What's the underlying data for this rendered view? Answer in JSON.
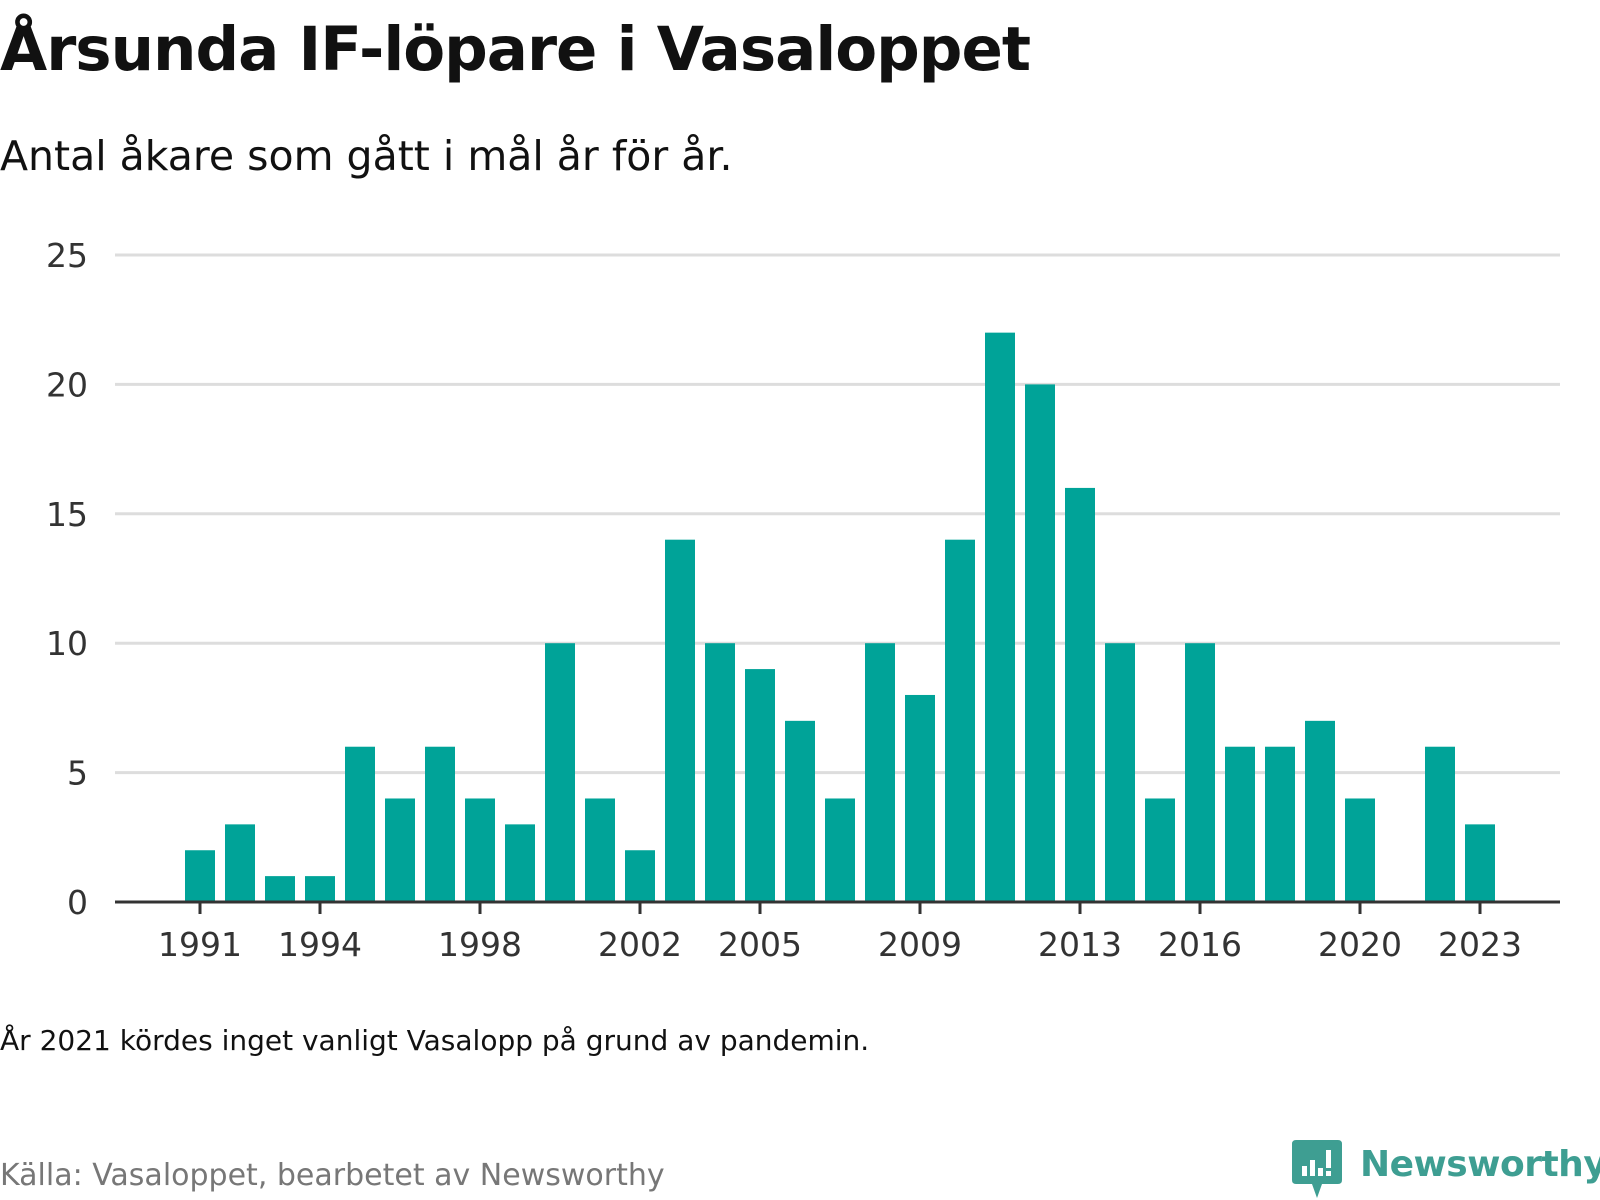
{
  "title": "Årsunda IF-löpare i Vasaloppet",
  "subtitle": "Antal åkare som gått i mål år för år.",
  "note": "År 2021 kördes inget vanligt Vasalopp på grund av pandemin.",
  "source": "Källa: Vasaloppet, bearbetet av Newsworthy",
  "brand": {
    "name": "Newsworthy",
    "icon": "newsworthy-logo-icon"
  },
  "colors": {
    "bar": "#00a398",
    "grid": "#dddddd",
    "axis": "#333333",
    "brand": "#3e9e92"
  },
  "chart_data": {
    "type": "bar",
    "x": [
      1991,
      1992,
      1993,
      1994,
      1995,
      1996,
      1997,
      1998,
      1999,
      2000,
      2001,
      2002,
      2003,
      2004,
      2005,
      2006,
      2007,
      2008,
      2009,
      2010,
      2011,
      2012,
      2013,
      2014,
      2015,
      2016,
      2017,
      2018,
      2019,
      2020,
      2021,
      2022,
      2023
    ],
    "values": [
      2,
      3,
      1,
      1,
      6,
      4,
      6,
      4,
      3,
      10,
      4,
      2,
      14,
      10,
      9,
      7,
      4,
      10,
      8,
      14,
      22,
      20,
      16,
      10,
      4,
      10,
      6,
      6,
      7,
      4,
      null,
      6,
      3
    ],
    "x_tick_labels": [
      "1991",
      "1994",
      "1998",
      "2002",
      "2005",
      "2009",
      "2013",
      "2016",
      "2020",
      "2023"
    ],
    "y_ticks": [
      "0",
      "5",
      "10",
      "15",
      "20",
      "25"
    ],
    "ylim": [
      0,
      25
    ],
    "grid": true,
    "xlabel": "",
    "ylabel": ""
  }
}
